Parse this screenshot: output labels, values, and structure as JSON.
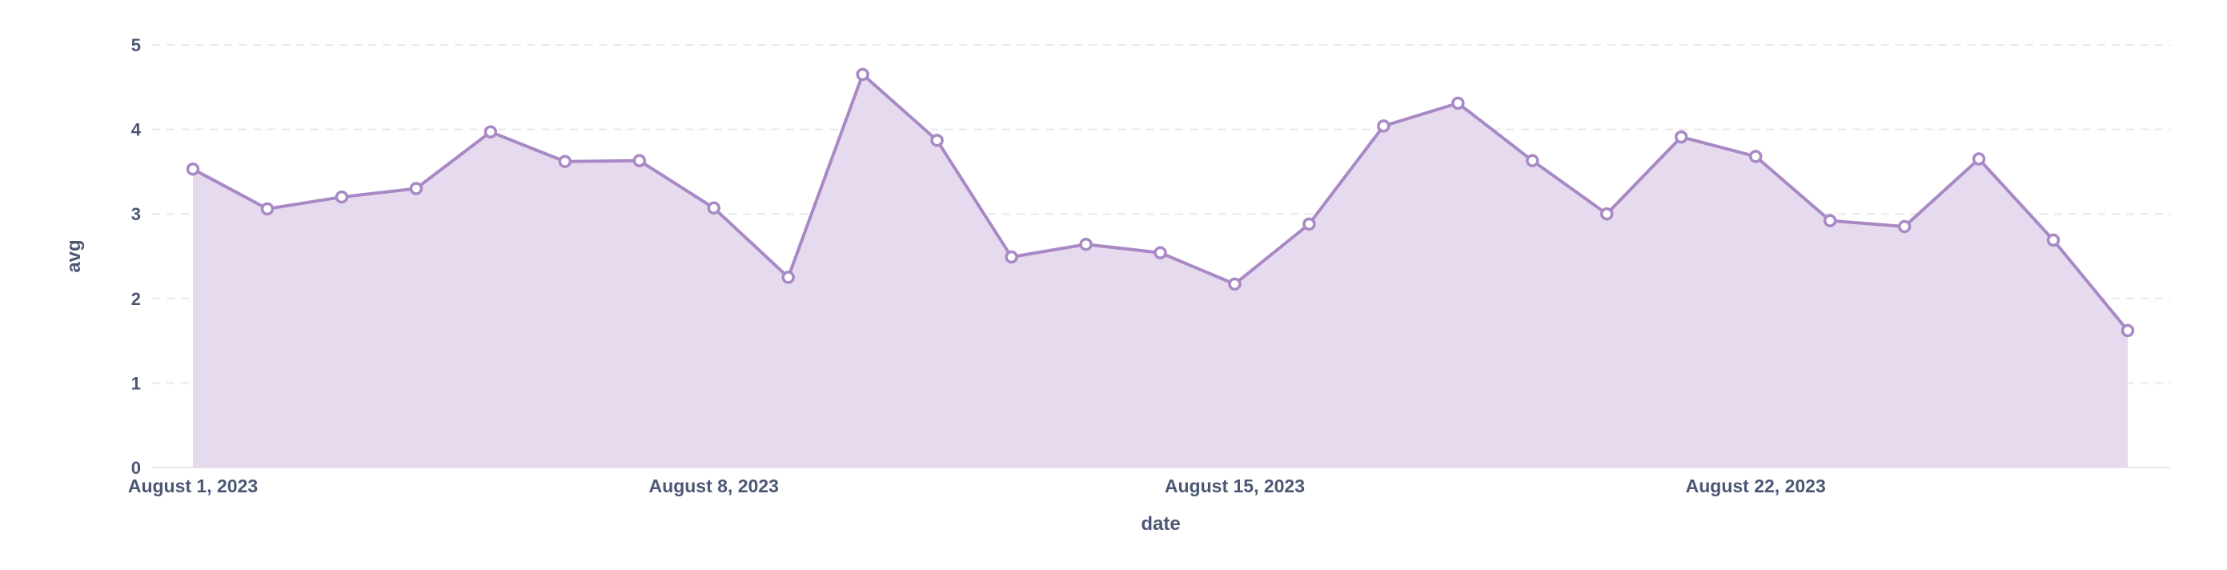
{
  "chart_data": {
    "type": "area",
    "title": "",
    "xlabel": "date",
    "ylabel": "avg",
    "ylim": [
      0,
      5
    ],
    "yticks": [
      0,
      1,
      2,
      3,
      4,
      5
    ],
    "xticks": [
      "2023-08-01",
      "2023-08-08",
      "2023-08-15",
      "2023-08-22"
    ],
    "xtick_labels": [
      "August 1, 2023",
      "August 8, 2023",
      "August 15, 2023",
      "August 22, 2023"
    ],
    "grid": true,
    "colors": {
      "line": "#a989c5",
      "fill": "#e6dbee",
      "grid": "#e6e8eb",
      "text": "#4c5773"
    },
    "series": [
      {
        "x": [
          "2023-08-01",
          "2023-08-02",
          "2023-08-03",
          "2023-08-04",
          "2023-08-05",
          "2023-08-06",
          "2023-08-07",
          "2023-08-08",
          "2023-08-09",
          "2023-08-10",
          "2023-08-11",
          "2023-08-12",
          "2023-08-13",
          "2023-08-14",
          "2023-08-15",
          "2023-08-16",
          "2023-08-17",
          "2023-08-18",
          "2023-08-19",
          "2023-08-20",
          "2023-08-21",
          "2023-08-22",
          "2023-08-23",
          "2023-08-24",
          "2023-08-25",
          "2023-08-26",
          "2023-08-27"
        ],
        "values": [
          3.53,
          3.06,
          3.2,
          3.3,
          3.97,
          3.62,
          3.63,
          3.07,
          2.25,
          4.65,
          3.87,
          2.49,
          2.64,
          2.54,
          2.17,
          2.88,
          4.04,
          4.31,
          3.63,
          3.0,
          3.91,
          3.68,
          2.92,
          2.85,
          3.65,
          2.69,
          1.62
        ]
      }
    ]
  }
}
